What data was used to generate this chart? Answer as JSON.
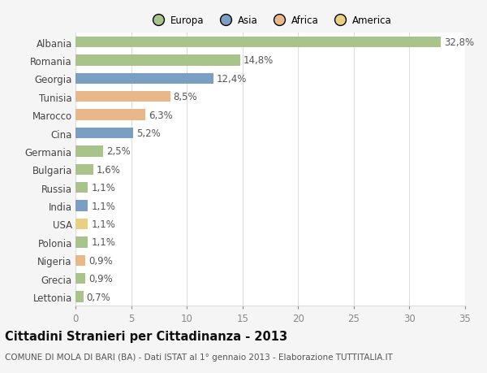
{
  "categories": [
    "Albania",
    "Romania",
    "Georgia",
    "Tunisia",
    "Marocco",
    "Cina",
    "Germania",
    "Bulgaria",
    "Russia",
    "India",
    "USA",
    "Polonia",
    "Nigeria",
    "Grecia",
    "Lettonia"
  ],
  "values": [
    32.8,
    14.8,
    12.4,
    8.5,
    6.3,
    5.2,
    2.5,
    1.6,
    1.1,
    1.1,
    1.1,
    1.1,
    0.9,
    0.9,
    0.7
  ],
  "labels": [
    "32,8%",
    "14,8%",
    "12,4%",
    "8,5%",
    "6,3%",
    "5,2%",
    "2,5%",
    "1,6%",
    "1,1%",
    "1,1%",
    "1,1%",
    "1,1%",
    "0,9%",
    "0,9%",
    "0,7%"
  ],
  "continents": [
    "Europa",
    "Europa",
    "Asia",
    "Africa",
    "Africa",
    "Asia",
    "Europa",
    "Europa",
    "Europa",
    "Asia",
    "America",
    "Europa",
    "Africa",
    "Europa",
    "Europa"
  ],
  "colors": {
    "Europa": "#a8c48a",
    "Asia": "#7a9fc2",
    "Africa": "#e8b88a",
    "America": "#e8d080"
  },
  "legend_order": [
    "Europa",
    "Asia",
    "Africa",
    "America"
  ],
  "legend_colors": [
    "#a8c48a",
    "#7a9fc2",
    "#e8b88a",
    "#e8d080"
  ],
  "title": "Cittadini Stranieri per Cittadinanza - 2013",
  "subtitle": "COMUNE DI MOLA DI BARI (BA) - Dati ISTAT al 1° gennaio 2013 - Elaborazione TUTTITALIA.IT",
  "xlim": [
    0,
    35
  ],
  "xticks": [
    0,
    5,
    10,
    15,
    20,
    25,
    30,
    35
  ],
  "background_color": "#f5f5f5",
  "plot_bg_color": "#ffffff",
  "grid_color": "#dddddd",
  "bar_height": 0.6,
  "label_fontsize": 8.5,
  "title_fontsize": 10.5,
  "subtitle_fontsize": 7.5
}
